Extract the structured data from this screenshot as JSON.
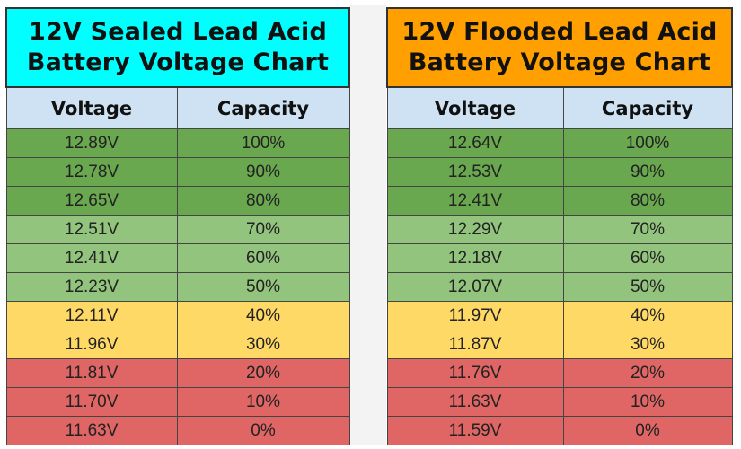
{
  "colors": {
    "sealed_title_bg": "#00ffff",
    "flooded_title_bg": "#ff9f00",
    "header_bg": "#cfe2f3",
    "status": {
      "dark-green": "#6aa84f",
      "light-green": "#93c47d",
      "yellow": "#ffd966",
      "red": "#e06666"
    }
  },
  "sealed": {
    "title_line1": "12V Sealed Lead Acid",
    "title_line2": "Battery Voltage Chart",
    "col_voltage": "Voltage",
    "col_capacity": "Capacity",
    "rows": [
      {
        "voltage": "12.89V",
        "capacity": "100%",
        "status": "dark-green"
      },
      {
        "voltage": "12.78V",
        "capacity": "90%",
        "status": "dark-green"
      },
      {
        "voltage": "12.65V",
        "capacity": "80%",
        "status": "dark-green"
      },
      {
        "voltage": "12.51V",
        "capacity": "70%",
        "status": "light-green"
      },
      {
        "voltage": "12.41V",
        "capacity": "60%",
        "status": "light-green"
      },
      {
        "voltage": "12.23V",
        "capacity": "50%",
        "status": "light-green"
      },
      {
        "voltage": "12.11V",
        "capacity": "40%",
        "status": "yellow"
      },
      {
        "voltage": "11.96V",
        "capacity": "30%",
        "status": "yellow"
      },
      {
        "voltage": "11.81V",
        "capacity": "20%",
        "status": "red"
      },
      {
        "voltage": "11.70V",
        "capacity": "10%",
        "status": "red"
      },
      {
        "voltage": "11.63V",
        "capacity": "0%",
        "status": "red"
      }
    ]
  },
  "flooded": {
    "title_line1": "12V Flooded Lead Acid",
    "title_line2": "Battery Voltage Chart",
    "col_voltage": "Voltage",
    "col_capacity": "Capacity",
    "rows": [
      {
        "voltage": "12.64V",
        "capacity": "100%",
        "status": "dark-green"
      },
      {
        "voltage": "12.53V",
        "capacity": "90%",
        "status": "dark-green"
      },
      {
        "voltage": "12.41V",
        "capacity": "80%",
        "status": "dark-green"
      },
      {
        "voltage": "12.29V",
        "capacity": "70%",
        "status": "light-green"
      },
      {
        "voltage": "12.18V",
        "capacity": "60%",
        "status": "light-green"
      },
      {
        "voltage": "12.07V",
        "capacity": "50%",
        "status": "light-green"
      },
      {
        "voltage": "11.97V",
        "capacity": "40%",
        "status": "yellow"
      },
      {
        "voltage": "11.87V",
        "capacity": "30%",
        "status": "yellow"
      },
      {
        "voltage": "11.76V",
        "capacity": "20%",
        "status": "red"
      },
      {
        "voltage": "11.63V",
        "capacity": "10%",
        "status": "red"
      },
      {
        "voltage": "11.59V",
        "capacity": "0%",
        "status": "red"
      }
    ]
  }
}
